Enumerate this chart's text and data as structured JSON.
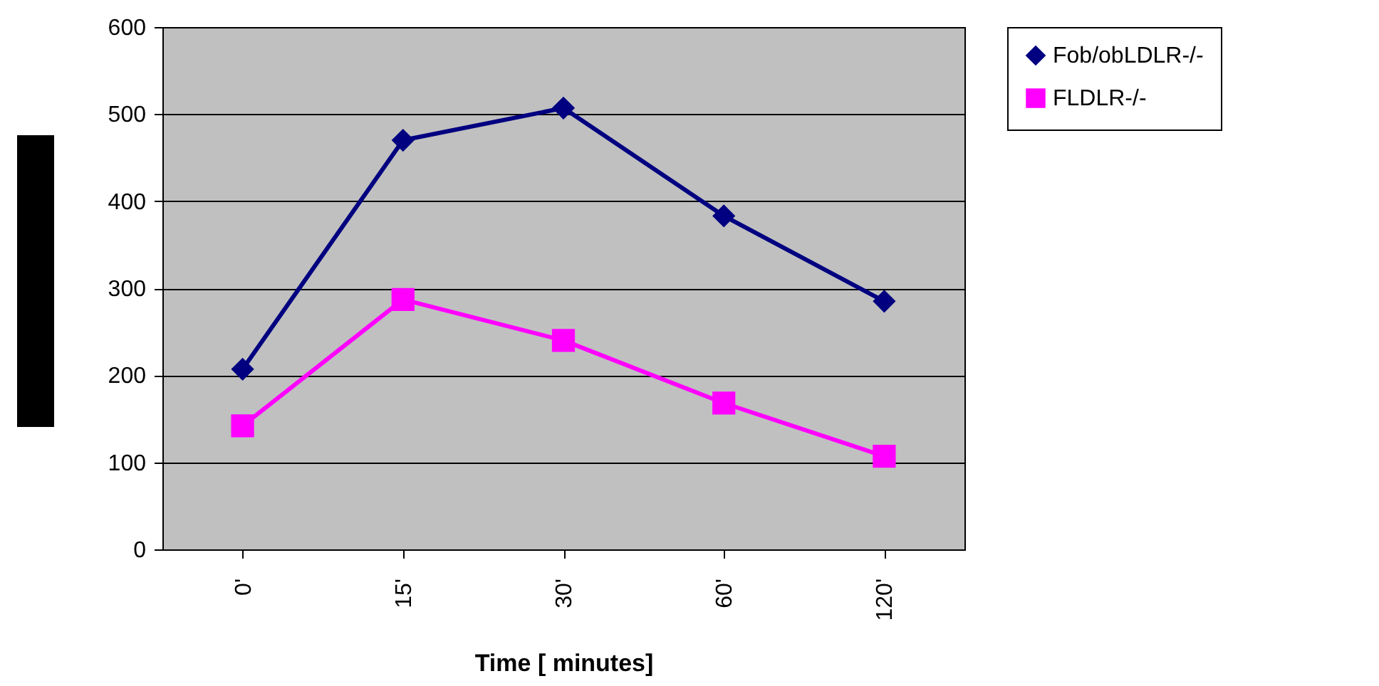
{
  "chart_data": {
    "type": "line",
    "xlabel": "Time [ minutes]",
    "categories": [
      "0'",
      "15'",
      "30'",
      "60'",
      "120'"
    ],
    "series": [
      {
        "name": "Fob/obLDLR-/-",
        "color": "#000080",
        "marker": "diamond",
        "values": [
          207,
          470,
          507,
          383,
          285
        ]
      },
      {
        "name": "FLDLR-/-",
        "color": "#ff00ff",
        "marker": "square",
        "values": [
          142,
          287,
          240,
          168,
          107
        ]
      }
    ],
    "ylim": [
      0,
      600
    ],
    "yticks": [
      0,
      100,
      200,
      300,
      400,
      500,
      600
    ],
    "grid": "y",
    "legend": "right"
  }
}
